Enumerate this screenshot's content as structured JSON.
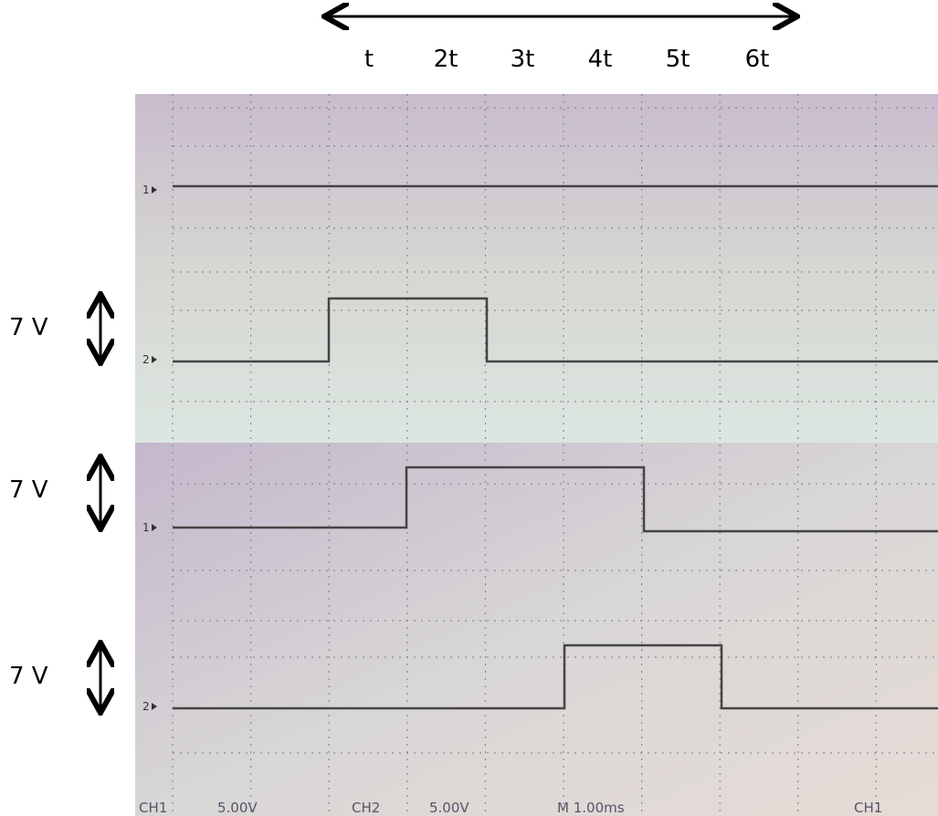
{
  "time_axis": {
    "labels": [
      "t",
      "2t",
      "3t",
      "4t",
      "5t",
      "6t"
    ]
  },
  "voltage_labels": [
    "7 V",
    "7 V",
    "7 V"
  ],
  "screens": [
    {
      "channel_markers": [
        "1",
        "2"
      ]
    },
    {
      "channel_markers": [
        "1",
        "2"
      ],
      "status": [
        "CH1",
        "5.00V",
        "CH2",
        "5.00V",
        "M 1.00ms",
        "CH1"
      ]
    }
  ]
}
